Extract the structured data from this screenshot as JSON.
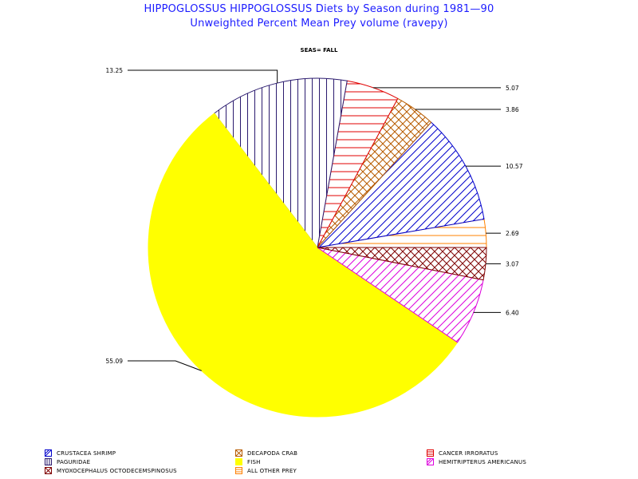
{
  "header": {
    "title_line1": "HIPPOGLOSSUS HIPPOGLOSSUS Diets by Season during 1981—90",
    "title_line2": "Unweighted Percent Mean Prey volume (ravepy)",
    "subtitle": "SEAS= FALL"
  },
  "chart_data": {
    "type": "pie",
    "title": "HIPPOGLOSSUS HIPPOGLOSSUS Diets by Season during 1981—90",
    "subtitle": "Unweighted Percent Mean Prey volume (ravepy)",
    "panel_label": "SEAS= FALL",
    "slices": [
      {
        "name": "ALL OTHER PREY",
        "value": 2.69,
        "label": "2.69",
        "color": "#ff8000",
        "pattern": "horizontal"
      },
      {
        "name": "CRUSTACEA SHRIMP",
        "value": 10.57,
        "label": "10.57",
        "color": "#0000cc",
        "pattern": "diagonal"
      },
      {
        "name": "DECAPODA CRAB",
        "value": 3.86,
        "label": "3.86",
        "color": "#b85c00",
        "pattern": "crosshatch"
      },
      {
        "name": "CANCER IRRORATUS",
        "value": 5.07,
        "label": "5.07",
        "color": "#e00000",
        "pattern": "horizontal"
      },
      {
        "name": "PAGURIDAE",
        "value": 13.25,
        "label": "13.25",
        "color": "#2a1a6e",
        "pattern": "vertical"
      },
      {
        "name": "FISH",
        "value": 55.09,
        "label": "55.09",
        "color": "#ffff00",
        "pattern": "solid"
      },
      {
        "name": "HEMITRIPTERUS AMERICANUS",
        "value": 6.4,
        "label": "6.40",
        "color": "#dd00dd",
        "pattern": "diagonal"
      },
      {
        "name": "MYOXOCEPHALUS OCTODECEMSPINOSUS",
        "value": 3.07,
        "label": "3.07",
        "color": "#800000",
        "pattern": "crosshatch"
      }
    ],
    "legend": {
      "placement": "bottom",
      "entries": [
        {
          "name": "CRUSTACEA SHRIMP",
          "color": "#0000cc",
          "pattern": "diagonal"
        },
        {
          "name": "DECAPODA CRAB",
          "color": "#b85c00",
          "pattern": "crosshatch"
        },
        {
          "name": "CANCER IRRORATUS",
          "color": "#e00000",
          "pattern": "horizontal"
        },
        {
          "name": "PAGURIDAE",
          "color": "#2a1a6e",
          "pattern": "vertical"
        },
        {
          "name": "FISH",
          "color": "#ffff00",
          "pattern": "solid"
        },
        {
          "name": "HEMITRIPTERUS AMERICANUS",
          "color": "#dd00dd",
          "pattern": "diagonal"
        },
        {
          "name": "MYOXOCEPHALUS OCTODECEMSPINOSUS",
          "color": "#800000",
          "pattern": "crosshatch"
        },
        {
          "name": "ALL OTHER PREY",
          "color": "#ff8000",
          "pattern": "horizontal"
        }
      ]
    }
  }
}
